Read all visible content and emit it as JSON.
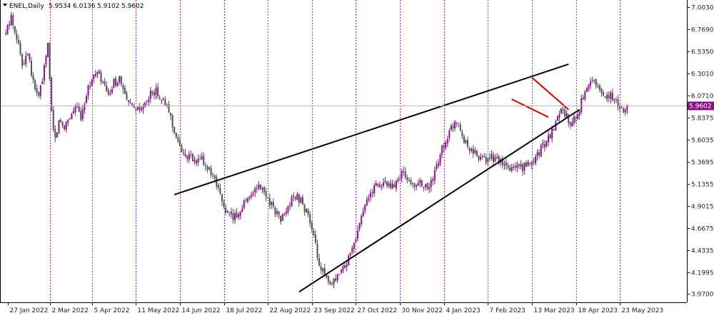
{
  "chart_data": {
    "type": "candlestick",
    "header": {
      "symbol_label": "ENEL,Daily",
      "open": "5.9534",
      "high": "6.0136",
      "low": "5.9102",
      "close": "5.9602"
    },
    "current_price": 5.9602,
    "current_price_label": "5.9602",
    "y_axis": {
      "ylim": [
        3.88,
        7.08
      ],
      "ticks": [
        {
          "value": 7.003,
          "label": "7.0030"
        },
        {
          "value": 6.769,
          "label": "6.7690"
        },
        {
          "value": 6.535,
          "label": "6.5350"
        },
        {
          "value": 6.301,
          "label": "6.3010"
        },
        {
          "value": 6.071,
          "label": "6.0710"
        },
        {
          "value": 5.8375,
          "label": "5.8375"
        },
        {
          "value": 5.6035,
          "label": "5.6035"
        },
        {
          "value": 5.3695,
          "label": "5.3695"
        },
        {
          "value": 5.1355,
          "label": "5.1355"
        },
        {
          "value": 4.9015,
          "label": "4.9015"
        },
        {
          "value": 4.6675,
          "label": "4.6675"
        },
        {
          "value": 4.4335,
          "label": "4.4335"
        },
        {
          "value": 4.1995,
          "label": "4.1995"
        },
        {
          "value": 3.97,
          "label": "3.9700"
        }
      ]
    },
    "x_axis": {
      "total_bars": 340,
      "ticks": [
        {
          "bar": 1,
          "label": "27 Jan 2022"
        },
        {
          "bar": 24,
          "label": "2 Mar 2022"
        },
        {
          "bar": 47,
          "label": "5 Apr 2022"
        },
        {
          "bar": 71,
          "label": "11 May 2022"
        },
        {
          "bar": 95,
          "label": "14 Jun 2022"
        },
        {
          "bar": 119,
          "label": "18 Jul 2022"
        },
        {
          "bar": 143,
          "label": "22 Aug 2022"
        },
        {
          "bar": 167,
          "label": "23 Sep 2022"
        },
        {
          "bar": 191,
          "label": "27 Oct 2022"
        },
        {
          "bar": 215,
          "label": "30 Nov 2022"
        },
        {
          "bar": 239,
          "label": "4 Jan 2023"
        },
        {
          "bar": 263,
          "label": "7 Feb 2023"
        },
        {
          "bar": 287,
          "label": "13 Mar 2023"
        },
        {
          "bar": 311,
          "label": "18 Apr 2023"
        },
        {
          "bar": 335,
          "label": "23 May 2023"
        }
      ]
    },
    "price_path": [
      [
        0,
        6.72
      ],
      [
        3,
        6.9
      ],
      [
        6,
        6.7
      ],
      [
        9,
        6.4
      ],
      [
        12,
        6.55
      ],
      [
        15,
        6.2
      ],
      [
        18,
        6.05
      ],
      [
        21,
        6.35
      ],
      [
        23,
        6.6
      ],
      [
        25,
        5.9
      ],
      [
        27,
        5.6
      ],
      [
        29,
        5.8
      ],
      [
        32,
        5.75
      ],
      [
        35,
        5.85
      ],
      [
        38,
        5.95
      ],
      [
        41,
        5.85
      ],
      [
        44,
        6.1
      ],
      [
        47,
        6.25
      ],
      [
        50,
        6.3
      ],
      [
        53,
        6.2
      ],
      [
        56,
        6.05
      ],
      [
        59,
        6.2
      ],
      [
        62,
        6.25
      ],
      [
        65,
        6.05
      ],
      [
        68,
        5.95
      ],
      [
        71,
        5.9
      ],
      [
        74,
        5.92
      ],
      [
        77,
        6.0
      ],
      [
        80,
        6.12
      ],
      [
        83,
        6.1
      ],
      [
        86,
        6.0
      ],
      [
        89,
        5.9
      ],
      [
        92,
        5.7
      ],
      [
        95,
        5.5
      ],
      [
        98,
        5.45
      ],
      [
        101,
        5.4
      ],
      [
        104,
        5.35
      ],
      [
        107,
        5.4
      ],
      [
        110,
        5.3
      ],
      [
        113,
        5.2
      ],
      [
        116,
        5.05
      ],
      [
        118,
        4.95
      ],
      [
        120,
        4.85
      ],
      [
        123,
        4.78
      ],
      [
        126,
        4.8
      ],
      [
        129,
        4.9
      ],
      [
        132,
        5.0
      ],
      [
        135,
        5.05
      ],
      [
        138,
        5.1
      ],
      [
        141,
        5.05
      ],
      [
        144,
        4.95
      ],
      [
        147,
        4.85
      ],
      [
        150,
        4.75
      ],
      [
        153,
        4.85
      ],
      [
        156,
        4.95
      ],
      [
        159,
        5.0
      ],
      [
        162,
        4.92
      ],
      [
        165,
        4.8
      ],
      [
        168,
        4.55
      ],
      [
        171,
        4.3
      ],
      [
        174,
        4.15
      ],
      [
        177,
        4.05
      ],
      [
        180,
        4.1
      ],
      [
        183,
        4.2
      ],
      [
        186,
        4.3
      ],
      [
        189,
        4.45
      ],
      [
        192,
        4.65
      ],
      [
        195,
        4.85
      ],
      [
        198,
        5.0
      ],
      [
        201,
        5.1
      ],
      [
        204,
        5.12
      ],
      [
        207,
        5.15
      ],
      [
        210,
        5.08
      ],
      [
        213,
        5.15
      ],
      [
        216,
        5.25
      ],
      [
        219,
        5.2
      ],
      [
        222,
        5.1
      ],
      [
        225,
        5.15
      ],
      [
        228,
        5.1
      ],
      [
        231,
        5.08
      ],
      [
        234,
        5.25
      ],
      [
        237,
        5.45
      ],
      [
        240,
        5.6
      ],
      [
        243,
        5.72
      ],
      [
        246,
        5.82
      ],
      [
        249,
        5.65
      ],
      [
        252,
        5.52
      ],
      [
        255,
        5.47
      ],
      [
        258,
        5.42
      ],
      [
        261,
        5.38
      ],
      [
        264,
        5.42
      ],
      [
        267,
        5.4
      ],
      [
        270,
        5.35
      ],
      [
        273,
        5.3
      ],
      [
        276,
        5.28
      ],
      [
        279,
        5.32
      ],
      [
        282,
        5.3
      ],
      [
        285,
        5.35
      ],
      [
        288,
        5.4
      ],
      [
        291,
        5.48
      ],
      [
        294,
        5.55
      ],
      [
        297,
        5.65
      ],
      [
        300,
        5.78
      ],
      [
        303,
        5.95
      ],
      [
        306,
        5.85
      ],
      [
        309,
        5.75
      ],
      [
        312,
        5.9
      ],
      [
        315,
        6.05
      ],
      [
        318,
        6.15
      ],
      [
        321,
        6.22
      ],
      [
        324,
        6.15
      ],
      [
        327,
        6.05
      ],
      [
        330,
        6.08
      ],
      [
        333,
        5.98
      ],
      [
        336,
        5.92
      ],
      [
        339,
        5.96
      ]
    ],
    "annotations": [
      {
        "name": "upper-trendline",
        "color": "#000000",
        "points": [
          [
            92,
            5.02
          ],
          [
            307,
            6.4
          ]
        ]
      },
      {
        "name": "lower-trendline",
        "color": "#000000",
        "points": [
          [
            160,
            3.99
          ],
          [
            313,
            5.92
          ]
        ]
      },
      {
        "name": "wedge-upper-line",
        "color": "#e00000",
        "points": [
          [
            287,
            6.26
          ],
          [
            307,
            5.92
          ]
        ]
      },
      {
        "name": "wedge-lower-line",
        "color": "#e00000",
        "points": [
          [
            276,
            6.03
          ],
          [
            296,
            5.84
          ]
        ]
      }
    ],
    "colors": {
      "bull_candle": "#8b0f8b",
      "bear_candle": "#505050",
      "grid": "#b030b0",
      "price_tag_bg": "#8b0f8b",
      "price_tag_text": "#ffffff",
      "axis_text": "#222222"
    }
  }
}
